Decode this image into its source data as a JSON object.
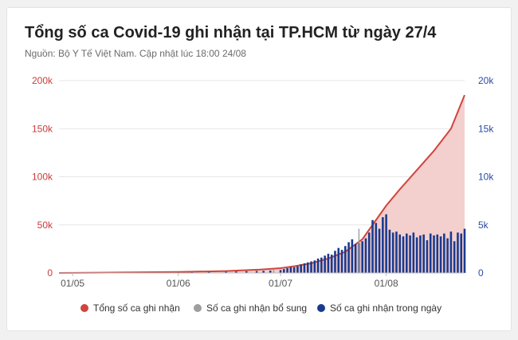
{
  "title": "Tổng số ca Covid-19 ghi nhận tại TP.HCM từ ngày 27/4",
  "subtitle": "Nguồn: Bộ Y Tế Việt Nam. Cập nhật lúc 18:00 24/08",
  "colors": {
    "total": "#d0453e",
    "area": "#f3cfcd",
    "supplement": "#9e9e9e",
    "daily": "#1a3a8f",
    "left_axis_text": "#cc3b3b",
    "right_axis_text": "#2b4aa8",
    "grid": "#e6e6e6"
  },
  "chart_data": {
    "type": "bar+area",
    "x_range": [
      "2021-04-27",
      "2021-08-24"
    ],
    "x_ticks": [
      "01/05",
      "01/06",
      "01/07",
      "01/08"
    ],
    "y_left": {
      "ticks": [
        "0",
        "50k",
        "100k",
        "150k",
        "200k"
      ],
      "range": [
        0,
        200000
      ]
    },
    "y_right": {
      "ticks": [
        "0",
        "5k",
        "10k",
        "15k",
        "20k"
      ],
      "range": [
        0,
        20000
      ]
    },
    "legend": [
      "Tổng số ca ghi nhận",
      "Số ca ghi nhận bổ sung",
      "Số ca ghi nhận trong ngày"
    ],
    "legend_position": "bottom",
    "series": [
      {
        "name": "Tổng số ca ghi nhận",
        "kind": "area",
        "axis": "left",
        "points": [
          [
            "2021-04-27",
            0
          ],
          [
            "2021-05-15",
            500
          ],
          [
            "2021-06-01",
            1000
          ],
          [
            "2021-06-15",
            2000
          ],
          [
            "2021-06-25",
            3500
          ],
          [
            "2021-07-01",
            5000
          ],
          [
            "2021-07-05",
            7000
          ],
          [
            "2021-07-10",
            10000
          ],
          [
            "2021-07-15",
            15000
          ],
          [
            "2021-07-20",
            22000
          ],
          [
            "2021-07-25",
            35000
          ],
          [
            "2021-07-28",
            50000
          ],
          [
            "2021-08-01",
            70000
          ],
          [
            "2021-08-05",
            87000
          ],
          [
            "2021-08-10",
            107000
          ],
          [
            "2021-08-15",
            127000
          ],
          [
            "2021-08-20",
            150000
          ],
          [
            "2021-08-24",
            185000
          ]
        ]
      },
      {
        "name": "Số ca ghi nhận bổ sung",
        "kind": "bar",
        "axis": "right",
        "points": [
          [
            "2021-06-29",
            400
          ],
          [
            "2021-07-24",
            4600
          ]
        ]
      },
      {
        "name": "Số ca ghi nhận trong ngày",
        "kind": "bar",
        "axis": "right",
        "points": [
          [
            "2021-05-18",
            40
          ],
          [
            "2021-05-25",
            50
          ],
          [
            "2021-06-01",
            60
          ],
          [
            "2021-06-05",
            80
          ],
          [
            "2021-06-10",
            100
          ],
          [
            "2021-06-15",
            120
          ],
          [
            "2021-06-18",
            150
          ],
          [
            "2021-06-21",
            180
          ],
          [
            "2021-06-24",
            200
          ],
          [
            "2021-06-26",
            220
          ],
          [
            "2021-06-28",
            250
          ],
          [
            "2021-07-01",
            300
          ],
          [
            "2021-07-02",
            400
          ],
          [
            "2021-07-03",
            500
          ],
          [
            "2021-07-04",
            600
          ],
          [
            "2021-07-05",
            600
          ],
          [
            "2021-07-06",
            700
          ],
          [
            "2021-07-07",
            900
          ],
          [
            "2021-07-08",
            1000
          ],
          [
            "2021-07-09",
            1100
          ],
          [
            "2021-07-10",
            1200
          ],
          [
            "2021-07-11",
            1300
          ],
          [
            "2021-07-12",
            1500
          ],
          [
            "2021-07-13",
            1600
          ],
          [
            "2021-07-14",
            1800
          ],
          [
            "2021-07-15",
            2000
          ],
          [
            "2021-07-16",
            1900
          ],
          [
            "2021-07-17",
            2300
          ],
          [
            "2021-07-18",
            2600
          ],
          [
            "2021-07-19",
            2400
          ],
          [
            "2021-07-20",
            2800
          ],
          [
            "2021-07-21",
            3200
          ],
          [
            "2021-07-22",
            3500
          ],
          [
            "2021-07-23",
            3000
          ],
          [
            "2021-07-24",
            3100
          ],
          [
            "2021-07-25",
            3300
          ],
          [
            "2021-07-26",
            3600
          ],
          [
            "2021-07-27",
            4200
          ],
          [
            "2021-07-28",
            5500
          ],
          [
            "2021-07-29",
            5200
          ],
          [
            "2021-07-30",
            4600
          ],
          [
            "2021-07-31",
            5800
          ],
          [
            "2021-08-01",
            6100
          ],
          [
            "2021-08-02",
            4500
          ],
          [
            "2021-08-03",
            4200
          ],
          [
            "2021-08-04",
            4300
          ],
          [
            "2021-08-05",
            4000
          ],
          [
            "2021-08-06",
            3800
          ],
          [
            "2021-08-07",
            4100
          ],
          [
            "2021-08-08",
            3900
          ],
          [
            "2021-08-09",
            4200
          ],
          [
            "2021-08-10",
            3700
          ],
          [
            "2021-08-11",
            3900
          ],
          [
            "2021-08-12",
            4000
          ],
          [
            "2021-08-13",
            3400
          ],
          [
            "2021-08-14",
            4100
          ],
          [
            "2021-08-15",
            3900
          ],
          [
            "2021-08-16",
            4000
          ],
          [
            "2021-08-17",
            3800
          ],
          [
            "2021-08-18",
            4100
          ],
          [
            "2021-08-19",
            3600
          ],
          [
            "2021-08-20",
            4300
          ],
          [
            "2021-08-21",
            3300
          ],
          [
            "2021-08-22",
            4200
          ],
          [
            "2021-08-23",
            4100
          ],
          [
            "2021-08-24",
            4600
          ]
        ]
      }
    ]
  }
}
